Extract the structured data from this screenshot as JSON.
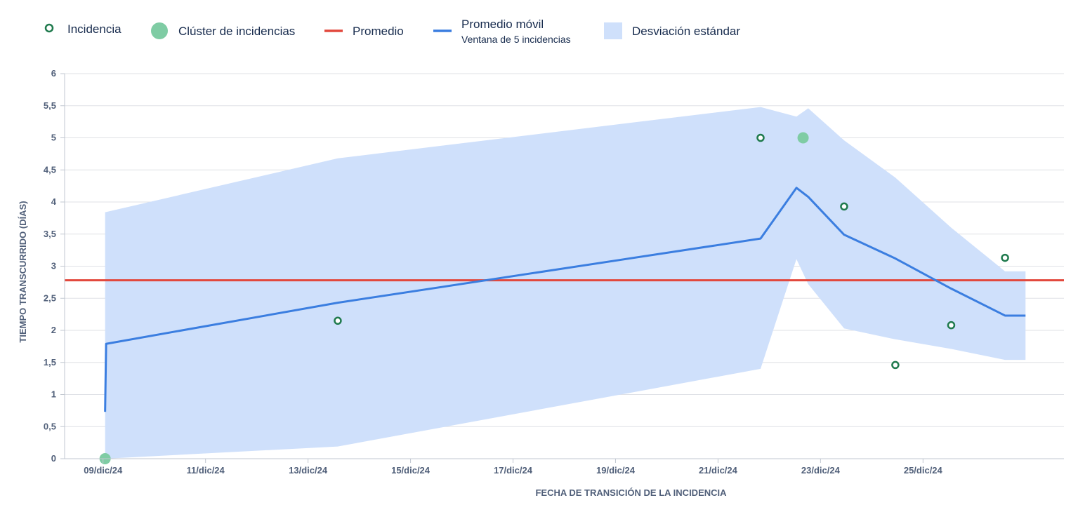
{
  "legend": {
    "incident": "Incidencia",
    "cluster": "Clúster de incidencias",
    "average": "Promedio",
    "moving_average": "Promedio móvil",
    "moving_average_window": "Ventana de 5 incidencias",
    "std_dev": "Desviación estándar"
  },
  "colors": {
    "incident_stroke": "#1f7a4d",
    "cluster_fill": "#7fcca4",
    "average": "#e2483d",
    "moving_average": "#3b7ee0",
    "std_dev": "#cfe0fb",
    "grid": "#dfe1e6",
    "axis": "#c1c7d0"
  },
  "chart_data": {
    "type": "scatter",
    "xlabel": "FECHA DE TRANSICIÓN DE LA INCIDENCIA",
    "ylabel": "TIEMPO TRANSCURRIDO (DÍAS)",
    "xlim": [
      8.25,
      27.75
    ],
    "ylim": [
      0,
      6
    ],
    "x_ticks": [
      {
        "x": 9,
        "label": "09/dic/24"
      },
      {
        "x": 11,
        "label": "11/dic/24"
      },
      {
        "x": 13,
        "label": "13/dic/24"
      },
      {
        "x": 15,
        "label": "15/dic/24"
      },
      {
        "x": 17,
        "label": "17/dic/24"
      },
      {
        "x": 19,
        "label": "19/dic/24"
      },
      {
        "x": 21,
        "label": "21/dic/24"
      },
      {
        "x": 23,
        "label": "23/dic/24"
      },
      {
        "x": 25,
        "label": "25/dic/24"
      }
    ],
    "y_ticks": [
      {
        "y": 0,
        "label": "0"
      },
      {
        "y": 0.5,
        "label": "0,5"
      },
      {
        "y": 1,
        "label": "1"
      },
      {
        "y": 1.5,
        "label": "1,5"
      },
      {
        "y": 2,
        "label": "2"
      },
      {
        "y": 2.5,
        "label": "2,5"
      },
      {
        "y": 3,
        "label": "3"
      },
      {
        "y": 3.5,
        "label": "3,5"
      },
      {
        "y": 4,
        "label": "4"
      },
      {
        "y": 4.5,
        "label": "4,5"
      },
      {
        "y": 5,
        "label": "5"
      },
      {
        "y": 5.5,
        "label": "5,5"
      },
      {
        "y": 6,
        "label": "6"
      }
    ],
    "grid": true,
    "legend_position": "top",
    "incidents": [
      {
        "x": 13.58,
        "y": 2.15
      },
      {
        "x": 21.83,
        "y": 5.0
      },
      {
        "x": 23.46,
        "y": 3.93
      },
      {
        "x": 24.46,
        "y": 1.46
      },
      {
        "x": 25.55,
        "y": 2.08
      },
      {
        "x": 26.6,
        "y": 3.13
      }
    ],
    "clusters": [
      {
        "x": 9.04,
        "y": 0.0
      },
      {
        "x": 22.66,
        "y": 5.0
      }
    ],
    "average": 2.78,
    "moving_average": [
      {
        "x": 9.04,
        "y": 0.73
      },
      {
        "x": 9.06,
        "y": 1.79
      },
      {
        "x": 13.58,
        "y": 2.43
      },
      {
        "x": 21.83,
        "y": 3.43
      },
      {
        "x": 22.53,
        "y": 4.22
      },
      {
        "x": 22.76,
        "y": 4.08
      },
      {
        "x": 23.46,
        "y": 3.49
      },
      {
        "x": 24.46,
        "y": 3.12
      },
      {
        "x": 25.55,
        "y": 2.65
      },
      {
        "x": 26.6,
        "y": 2.23
      },
      {
        "x": 27.0,
        "y": 2.23
      }
    ],
    "std_dev_band": [
      {
        "x": 9.04,
        "upper": 3.84,
        "lower": 0.0
      },
      {
        "x": 13.58,
        "upper": 4.68,
        "lower": 0.19
      },
      {
        "x": 21.83,
        "upper": 5.48,
        "lower": 1.4
      },
      {
        "x": 22.53,
        "upper": 5.33,
        "lower": 3.11
      },
      {
        "x": 22.76,
        "upper": 5.46,
        "lower": 2.72
      },
      {
        "x": 23.46,
        "upper": 4.96,
        "lower": 2.03
      },
      {
        "x": 24.46,
        "upper": 4.38,
        "lower": 1.86
      },
      {
        "x": 25.55,
        "upper": 3.6,
        "lower": 1.71
      },
      {
        "x": 26.6,
        "upper": 2.92,
        "lower": 1.54
      },
      {
        "x": 27.0,
        "upper": 2.92,
        "lower": 1.54
      }
    ]
  }
}
